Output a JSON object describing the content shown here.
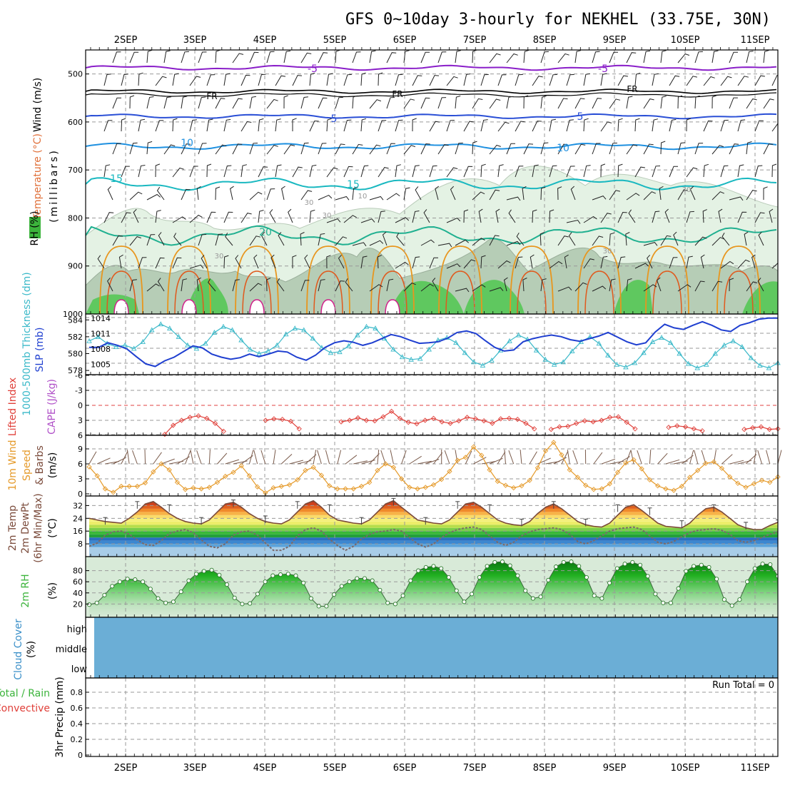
{
  "title": "GFS 0~10day 3-hourly for NEKHEL (33.75E, 30N)",
  "dates": [
    "2SEP",
    "3SEP",
    "4SEP",
    "5SEP",
    "6SEP",
    "7SEP",
    "8SEP",
    "9SEP",
    "10SEP",
    "11SEP"
  ],
  "colors": {
    "temp_m5": "#8a1fc9",
    "freezing": "#000000",
    "temp_5": "#2a4fd6",
    "temp_10": "#1e90e0",
    "temp_15": "#19b8c0",
    "temp_20": "#20b090",
    "rh": "#3cb43c",
    "thickness": "#3bb9c9",
    "slp": "#1f3fd0",
    "lifted_index": "#e0403a",
    "wind10m": "#e59a2a",
    "temp2m": "#7a4a3a",
    "cloud": "#6baed6"
  },
  "upper_panel": {
    "ylabels": {
      "wind": "Wind (m/s)",
      "temperature": "Temperature (°C)",
      "rh": "RH (%)",
      "pressure": "(millibars)"
    },
    "yticks": [
      "500",
      "600",
      "700",
      "800",
      "900",
      "1000"
    ],
    "isotherm_labels": [
      {
        "text": "-5"
      },
      {
        "text": "-5"
      },
      {
        "text": "FR"
      },
      {
        "text": "FR"
      },
      {
        "text": "FR"
      },
      {
        "text": "5"
      },
      {
        "text": "5"
      },
      {
        "text": "10"
      },
      {
        "text": "10"
      },
      {
        "text": "15"
      },
      {
        "text": "15"
      },
      {
        "text": "20"
      },
      {
        "text": "30"
      },
      {
        "text": "30"
      },
      {
        "text": "30"
      },
      {
        "text": "30"
      },
      {
        "text": "30"
      },
      {
        "text": "10"
      }
    ]
  },
  "slp_panel": {
    "ylabel_thickness": "1000-500mb Thickness (dm)",
    "ylabel_slp": "SLP (mb)",
    "yticks_left": [
      "584",
      "582",
      "580",
      "578"
    ],
    "yticks_right": [
      "1014",
      "1011",
      "1008",
      "1005"
    ]
  },
  "cape_panel": {
    "ylabel_li": "Lifted Index",
    "ylabel_cape": "CAPE (J/kg)",
    "yticks": [
      "-6",
      "-3",
      "0",
      "3",
      "6"
    ]
  },
  "wind_panel": {
    "ylabel": "10m Wind Speed & Barbs (m/s)",
    "ylabel_a": "10m Wind",
    "ylabel_b": "Speed",
    "ylabel_c": "& Barbs",
    "ylabel_unit": "(m/s)",
    "yticks": [
      "9",
      "6",
      "3",
      "0"
    ]
  },
  "temp_panel": {
    "ylabel_a": "2m Temp",
    "ylabel_b": "2m DewPt",
    "ylabel_c": "(6hr Min/Max)",
    "ylabel_unit": "(°C)",
    "yticks": [
      "32",
      "24",
      "16",
      "8"
    ]
  },
  "rh_panel": {
    "ylabel": "2m RH",
    "ylabel_unit": "(%)",
    "yticks": [
      "80",
      "60",
      "40",
      "20"
    ]
  },
  "cloud_panel": {
    "ylabel": "Cloud Cover",
    "ylabel_unit": "(%)",
    "levels": [
      "high",
      "middle",
      "low"
    ]
  },
  "precip_panel": {
    "ylabel_a": "Total / Rain",
    "ylabel_b": "Convective",
    "ylabel_c": "3hr Precip (mm)",
    "yticks": [
      "0.8",
      "0.6",
      "0.4",
      "0.2",
      "0"
    ],
    "run_total": "Run Total = 0"
  },
  "chart_data": [
    {
      "type": "line",
      "name_ref": "slp_panel",
      "x_unit": "3-hourly steps from 1SEP 12Z",
      "series": [
        {
          "name": "1000-500mb Thickness (dm)",
          "values": [
            581.5,
            582.0,
            581.2,
            580.8,
            581.0,
            580.6,
            581.4,
            582.8,
            583.5,
            583.0,
            582.0,
            581.0,
            580.6,
            581.2,
            582.5,
            583.2,
            582.8,
            581.6,
            580.5,
            580.0,
            580.3,
            581.0,
            582.3,
            583.0,
            582.8,
            581.8,
            580.7,
            580.1,
            580.2,
            580.9,
            582.2,
            583.2,
            583.0,
            581.8,
            580.5,
            579.6,
            579.3,
            579.4,
            580.5,
            581.6,
            581.9,
            581.3,
            580.1,
            579.0,
            578.6,
            579.2,
            580.4,
            581.5,
            582.2,
            581.7,
            580.4,
            579.3,
            578.7,
            579.0,
            580.3,
            581.4,
            582.0,
            581.2,
            579.8,
            578.7,
            578.4,
            578.9,
            580.1,
            581.4,
            581.9,
            581.3,
            580.0,
            578.8,
            578.3,
            578.7,
            580.0,
            581.0,
            581.5,
            580.8,
            579.5,
            578.6,
            578.3,
            578.9
          ]
        },
        {
          "name": "SLP (mb)",
          "values": [
            1008.3,
            1008.3,
            1009.2,
            1008.7,
            1008.0,
            1006.5,
            1005.1,
            1004.6,
            1005.7,
            1006.4,
            1007.5,
            1008.6,
            1008.2,
            1007.0,
            1006.4,
            1006.0,
            1006.3,
            1007.0,
            1006.5,
            1007.0,
            1007.6,
            1007.4,
            1006.4,
            1005.8,
            1006.8,
            1008.3,
            1009.2,
            1009.6,
            1009.3,
            1008.7,
            1009.2,
            1010.0,
            1010.8,
            1010.4,
            1009.7,
            1009.1,
            1009.2,
            1009.4,
            1010.1,
            1011.2,
            1011.5,
            1011.0,
            1009.6,
            1008.3,
            1007.6,
            1007.8,
            1009.4,
            1010.0,
            1010.4,
            1010.7,
            1010.4,
            1009.8,
            1009.5,
            1010.0,
            1010.5,
            1011.2,
            1010.3,
            1009.4,
            1008.8,
            1009.2,
            1011.3,
            1012.8,
            1012.1,
            1011.8,
            1012.6,
            1013.3,
            1012.6,
            1011.7,
            1011.4,
            1012.6,
            1013.1,
            1013.8,
            1014.0,
            1014.0
          ]
        }
      ]
    },
    {
      "type": "line",
      "name_ref": "cape_panel",
      "series": [
        {
          "name": "Lifted Index",
          "values": [
            null,
            null,
            null,
            null,
            null,
            null,
            null,
            null,
            null,
            5.8,
            4.0,
            3.0,
            2.4,
            2.1,
            2.6,
            3.6,
            5.2,
            null,
            null,
            null,
            null,
            3.0,
            2.7,
            2.8,
            3.2,
            4.7,
            null,
            null,
            null,
            null,
            3.3,
            3.0,
            2.5,
            3.0,
            3.1,
            2.3,
            1.2,
            2.6,
            3.4,
            3.7,
            3.0,
            2.6,
            3.3,
            3.6,
            3.1,
            2.4,
            2.7,
            3.1,
            3.6,
            2.7,
            2.6,
            2.8,
            3.6,
            4.7,
            null,
            4.8,
            4.3,
            4.2,
            3.6,
            3.1,
            3.3,
            3.0,
            2.4,
            2.3,
            3.4,
            4.7,
            null,
            null,
            null,
            4.4,
            4.1,
            4.3,
            4.7,
            5.1,
            null,
            null,
            null,
            null,
            4.8,
            4.5,
            4.3,
            4.8,
            4.7
          ]
        }
      ]
    },
    {
      "type": "line",
      "name_ref": "wind_panel",
      "series": [
        {
          "name": "10m Wind Speed (m/s)",
          "values": [
            5.4,
            3.6,
            1.0,
            0.3,
            1.5,
            1.5,
            1.5,
            2.2,
            4.4,
            6.0,
            4.8,
            2.3,
            0.9,
            1.2,
            1.0,
            1.3,
            2.3,
            3.5,
            4.3,
            5.6,
            3.6,
            1.4,
            0.2,
            1.2,
            1.5,
            1.8,
            2.8,
            4.7,
            5.3,
            3.7,
            1.6,
            1.0,
            1.0,
            1.0,
            1.5,
            2.3,
            4.7,
            6.0,
            5.3,
            3.0,
            1.3,
            1.0,
            1.3,
            1.8,
            2.9,
            4.5,
            6.7,
            7.3,
            9.4,
            7.7,
            4.8,
            2.5,
            1.7,
            1.2,
            1.6,
            2.7,
            5.2,
            8.6,
            10.3,
            7.8,
            4.8,
            3.3,
            1.7,
            0.9,
            1.0,
            2.0,
            4.3,
            6.2,
            6.8,
            5.0,
            2.8,
            1.6,
            1.0,
            0.7,
            1.5,
            3.3,
            4.7,
            6.1,
            6.4,
            5.1,
            3.4,
            2.1,
            1.3,
            2.0,
            2.7,
            2.3,
            3.4
          ]
        }
      ]
    },
    {
      "type": "line",
      "name_ref": "temp_panel",
      "series": [
        {
          "name": "2m Temp (°C)",
          "values": [
            24,
            23,
            22,
            21.5,
            21,
            24,
            28,
            33,
            34.5,
            31,
            27,
            24,
            22,
            21,
            20.5,
            23,
            28,
            33,
            34,
            31,
            27,
            24,
            22,
            21,
            20.5,
            23,
            28,
            33,
            35,
            31,
            26,
            23,
            22,
            21,
            20.5,
            23,
            28,
            33,
            35,
            31,
            27,
            23,
            22,
            21,
            20.5,
            23,
            28,
            33,
            34,
            31,
            27,
            23,
            21,
            20,
            19.5,
            22,
            27,
            31,
            33,
            30,
            26,
            22,
            20,
            19,
            18.5,
            21,
            26,
            31,
            32.5,
            29,
            25,
            21,
            19,
            18.5,
            18,
            21,
            26,
            30,
            31,
            28,
            24,
            20,
            18,
            17,
            17,
            19.5,
            21.5
          ]
        },
        {
          "name": "2m DewPt (°C)",
          "values": [
            6.5,
            8.5,
            13.5,
            15.5,
            16,
            14,
            10.5,
            7.5,
            7,
            10,
            14.5,
            16,
            17,
            15,
            10.5,
            6.5,
            5.5,
            8,
            13.5,
            15.5,
            16,
            13.5,
            8.5,
            4,
            4,
            6.5,
            13,
            17,
            18,
            16,
            11,
            7,
            4,
            6.5,
            11,
            14,
            15.5,
            16,
            17,
            16,
            12,
            8,
            6,
            8,
            12,
            15,
            17,
            18,
            18.5,
            17,
            13,
            9,
            7,
            9,
            13,
            15.5,
            17,
            17.5,
            18,
            17,
            14,
            9.5,
            8,
            10,
            13,
            16,
            17.5,
            18,
            18.5,
            17,
            13,
            9,
            8,
            9.5,
            12.5,
            15,
            16.5,
            17,
            17.5,
            16.5,
            14,
            10,
            9,
            10,
            12,
            14,
            15.5
          ]
        }
      ]
    },
    {
      "type": "area",
      "name_ref": "rh_panel",
      "series": [
        {
          "name": "2m RH (%)",
          "values": [
            19,
            22,
            36,
            52,
            60,
            65,
            64,
            60,
            47,
            30,
            22,
            24,
            42,
            62,
            74,
            79,
            81,
            72,
            55,
            31,
            20,
            21,
            38,
            60,
            71,
            73,
            74,
            71,
            58,
            30,
            16,
            16,
            37,
            52,
            60,
            66,
            66,
            62,
            45,
            22,
            20,
            35,
            62,
            80,
            86,
            88,
            84,
            68,
            44,
            24,
            38,
            68,
            88,
            95,
            96,
            89,
            71,
            44,
            30,
            33,
            63,
            87,
            95,
            96,
            88,
            68,
            35,
            30,
            58,
            84,
            92,
            95,
            90,
            70,
            38,
            22,
            22,
            48,
            79,
            88,
            90,
            86,
            65,
            28,
            17,
            28,
            60,
            84,
            92,
            91,
            70
          ]
        }
      ]
    },
    {
      "type": "bar",
      "name_ref": "precip_panel",
      "categories": [],
      "series": [
        {
          "name": "3hr Precip (mm)",
          "values": []
        }
      ],
      "ylim": [
        0,
        1
      ]
    }
  ]
}
